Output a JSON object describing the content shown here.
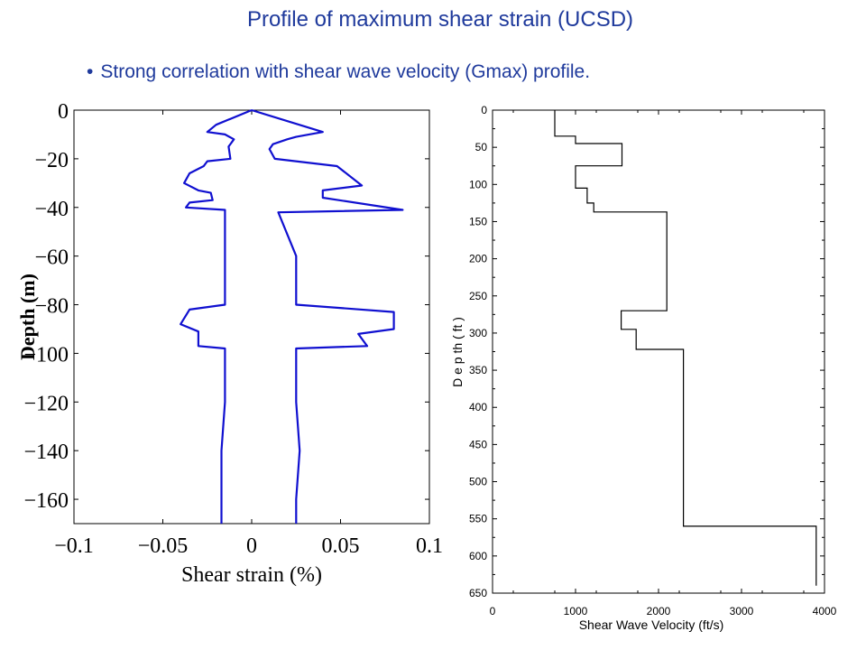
{
  "slide": {
    "title": "Profile of maximum shear strain (UCSD)",
    "bullet": "Strong correlation with shear wave velocity (Gmax) profile."
  },
  "colors": {
    "heading": "#1f3a9c",
    "strain_line": "#1010d0",
    "velocity_line": "#000000"
  },
  "chart_data": [
    {
      "type": "line",
      "xlabel": "Shear strain (%)",
      "ylabel": "Depth (m)",
      "xlim": [
        -0.1,
        0.1
      ],
      "ylim": [
        -170,
        0
      ],
      "xticks": [
        -0.1,
        -0.05,
        0,
        0.05,
        0.1
      ],
      "xtick_labels": [
        "−0.1",
        "−0.05",
        "0",
        "0.05",
        "0.1"
      ],
      "yticks": [
        0,
        -20,
        -40,
        -60,
        -80,
        -100,
        -120,
        -140,
        -160
      ],
      "ytick_labels": [
        "0",
        "−20",
        "−40",
        "−60",
        "−80",
        "−100",
        "−120",
        "−140",
        "−160"
      ],
      "grid": false,
      "series": [
        {
          "points": [
            [
              0,
              0
            ],
            [
              -0.02,
              -6
            ],
            [
              -0.025,
              -9
            ],
            [
              -0.015,
              -10
            ],
            [
              -0.01,
              -12
            ],
            [
              -0.013,
              -15
            ],
            [
              -0.012,
              -20
            ],
            [
              -0.025,
              -21
            ],
            [
              -0.027,
              -23
            ],
            [
              -0.035,
              -26
            ],
            [
              -0.038,
              -30
            ],
            [
              -0.03,
              -33
            ],
            [
              -0.023,
              -34
            ],
            [
              -0.022,
              -37
            ],
            [
              -0.035,
              -38
            ],
            [
              -0.037,
              -40
            ],
            [
              -0.015,
              -41
            ],
            [
              -0.015,
              -60
            ],
            [
              -0.015,
              -80
            ],
            [
              -0.035,
              -82
            ],
            [
              -0.04,
              -88
            ],
            [
              -0.03,
              -91
            ],
            [
              -0.03,
              -97
            ],
            [
              -0.015,
              -98
            ],
            [
              -0.015,
              -120
            ],
            [
              -0.017,
              -140
            ],
            [
              -0.017,
              -160
            ],
            [
              -0.017,
              -170
            ]
          ]
        },
        {
          "points": [
            [
              0,
              0
            ],
            [
              0.04,
              -9
            ],
            [
              0.025,
              -11
            ],
            [
              0.02,
              -12
            ],
            [
              0.012,
              -14
            ],
            [
              0.01,
              -16
            ],
            [
              0.013,
              -20
            ],
            [
              0.048,
              -23
            ],
            [
              0.062,
              -31
            ],
            [
              0.04,
              -33
            ],
            [
              0.04,
              -36
            ],
            [
              0.085,
              -41
            ],
            [
              0.015,
              -42
            ],
            [
              0.025,
              -60
            ],
            [
              0.025,
              -80
            ],
            [
              0.08,
              -83
            ],
            [
              0.08,
              -90
            ],
            [
              0.06,
              -92
            ],
            [
              0.065,
              -97
            ],
            [
              0.025,
              -98
            ],
            [
              0.025,
              -120
            ],
            [
              0.027,
              -140
            ],
            [
              0.025,
              -160
            ],
            [
              0.025,
              -170
            ]
          ]
        }
      ]
    },
    {
      "type": "line",
      "xlabel": "Shear Wave Velocity (ft/s)",
      "ylabel": "D e p th   ( ft )",
      "xlim": [
        0,
        4000
      ],
      "ylim": [
        0,
        650
      ],
      "y_inverted": true,
      "xticks": [
        0,
        1000,
        2000,
        3000,
        4000
      ],
      "xtick_labels": [
        "0",
        "1000",
        "2000",
        "3000",
        "4000"
      ],
      "yticks": [
        0,
        50,
        100,
        150,
        200,
        250,
        300,
        350,
        400,
        450,
        500,
        550,
        600,
        650
      ],
      "ytick_labels": [
        "0",
        "50",
        "100",
        "150",
        "200",
        "250",
        "300",
        "350",
        "400",
        "450",
        "500",
        "550",
        "600",
        "650"
      ],
      "grid": false,
      "series": [
        {
          "points": [
            [
              750,
              0
            ],
            [
              750,
              35
            ],
            [
              1000,
              35
            ],
            [
              1000,
              45
            ],
            [
              1560,
              45
            ],
            [
              1560,
              75
            ],
            [
              1000,
              75
            ],
            [
              1000,
              105
            ],
            [
              1140,
              105
            ],
            [
              1140,
              125
            ],
            [
              1220,
              125
            ],
            [
              1220,
              137
            ],
            [
              2100,
              137
            ],
            [
              2100,
              270
            ],
            [
              1550,
              270
            ],
            [
              1550,
              295
            ],
            [
              1730,
              295
            ],
            [
              1730,
              322
            ],
            [
              2300,
              322
            ],
            [
              2300,
              560
            ],
            [
              3900,
              560
            ],
            [
              3900,
              640
            ]
          ]
        }
      ]
    }
  ]
}
